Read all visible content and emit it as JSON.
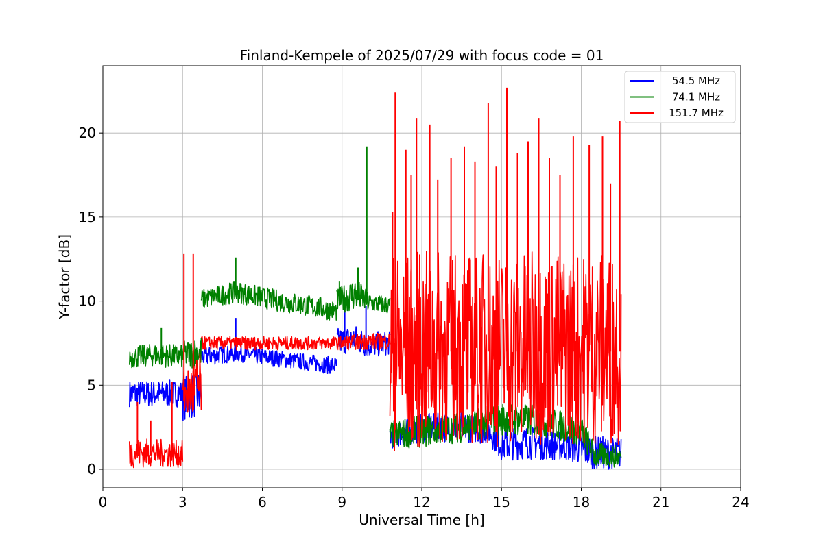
{
  "chart_data": {
    "type": "line",
    "title": "Finland-Kempele of 2025/07/29 with focus code = 01",
    "xlabel": "Universal Time [h]",
    "ylabel": "Y-factor [dB]",
    "xlim": [
      0,
      24
    ],
    "ylim": [
      -1.1,
      24.0
    ],
    "xticks": [
      0,
      3,
      6,
      9,
      12,
      15,
      18,
      21,
      24
    ],
    "yticks": [
      0,
      5,
      10,
      15,
      20
    ],
    "grid": true,
    "legend_position": "top-right",
    "series": [
      {
        "name": "54.5 MHz",
        "color": "#0000ff",
        "segments": [
          {
            "x": [
              1.0,
              3.0
            ],
            "mean": [
              4.5,
              4.5
            ],
            "low": [
              3.7,
              3.7
            ],
            "high": [
              5.3,
              5.3
            ]
          },
          {
            "x": [
              3.0,
              3.7
            ],
            "mean": [
              4.5,
              4.5
            ],
            "low": [
              2.9,
              3.1
            ],
            "high": [
              5.5,
              6.0
            ]
          },
          {
            "x": [
              3.7,
              5.0,
              6.5,
              8.0,
              8.8
            ],
            "mean": [
              6.7,
              6.9,
              6.7,
              6.3,
              6.1
            ],
            "low": [
              6.1,
              6.4,
              6.1,
              5.8,
              5.6
            ],
            "high": [
              7.3,
              7.4,
              7.1,
              6.8,
              6.7
            ]
          },
          {
            "x": [
              8.8,
              9.5,
              10.0,
              10.8
            ],
            "mean": [
              7.5,
              7.6,
              7.3,
              7.3
            ],
            "low": [
              6.8,
              6.9,
              6.6,
              6.8
            ],
            "high": [
              8.4,
              8.6,
              8.2,
              8.2
            ]
          },
          {
            "x": [
              10.8,
              12.0,
              13.5,
              14.5,
              15.0,
              16.0,
              17.5,
              18.5,
              19.5
            ],
            "mean": [
              2.0,
              2.5,
              2.5,
              2.3,
              1.4,
              1.5,
              1.2,
              1.0,
              1.0
            ],
            "low": [
              1.2,
              1.6,
              1.6,
              1.5,
              0.5,
              0.6,
              0.5,
              0.0,
              0.0
            ],
            "high": [
              2.8,
              3.3,
              3.4,
              3.2,
              2.4,
              2.6,
              2.2,
              2.0,
              1.9
            ]
          }
        ],
        "spikes": [
          {
            "x": 5.0,
            "y": 9.0
          },
          {
            "x": 9.1,
            "y": 9.8
          },
          {
            "x": 9.9,
            "y": 9.7
          }
        ]
      },
      {
        "name": "74.1 MHz",
        "color": "#008000",
        "segments": [
          {
            "x": [
              1.0,
              2.0,
              3.0
            ],
            "mean": [
              6.6,
              6.7,
              6.6
            ],
            "low": [
              6.0,
              6.1,
              6.0
            ],
            "high": [
              7.3,
              7.5,
              7.4
            ]
          },
          {
            "x": [
              3.0,
              3.7
            ],
            "mean": [
              6.8,
              6.8
            ],
            "low": [
              6.0,
              6.0
            ],
            "high": [
              7.6,
              8.0
            ]
          },
          {
            "x": [
              3.7,
              5.0,
              6.5,
              8.0,
              8.8
            ],
            "mean": [
              10.1,
              10.6,
              10.1,
              9.6,
              9.4
            ],
            "low": [
              9.5,
              9.9,
              9.4,
              9.0,
              8.8
            ],
            "high": [
              10.7,
              11.2,
              10.7,
              10.3,
              10.0
            ]
          },
          {
            "x": [
              8.8,
              9.5,
              10.0,
              10.8
            ],
            "mean": [
              10.0,
              10.1,
              9.9,
              9.8
            ],
            "low": [
              9.3,
              9.4,
              9.3,
              9.2
            ],
            "high": [
              10.7,
              11.5,
              10.5,
              10.3
            ]
          },
          {
            "x": [
              10.8,
              12.0,
              13.5,
              15.0,
              16.5,
              18.0,
              18.5,
              19.5
            ],
            "mean": [
              2.0,
              2.2,
              2.5,
              3.0,
              2.8,
              2.3,
              0.8,
              0.6
            ],
            "low": [
              1.2,
              1.3,
              1.6,
              2.0,
              1.9,
              1.4,
              0.1,
              0.1
            ],
            "high": [
              2.9,
              3.2,
              3.4,
              4.0,
              3.8,
              3.2,
              1.6,
              1.4
            ]
          }
        ],
        "spikes": [
          {
            "x": 2.2,
            "y": 8.4
          },
          {
            "x": 5.0,
            "y": 12.6
          },
          {
            "x": 8.9,
            "y": 11.2
          },
          {
            "x": 9.6,
            "y": 12.0
          },
          {
            "x": 9.93,
            "y": 19.2
          }
        ]
      },
      {
        "name": "151.7 MHz",
        "color": "#ff0000",
        "segments": [
          {
            "x": [
              1.0,
              2.0,
              3.0
            ],
            "mean": [
              0.9,
              0.8,
              0.7
            ],
            "low": [
              0.1,
              0.1,
              0.1
            ],
            "high": [
              1.9,
              1.8,
              1.7
            ]
          },
          {
            "x": [
              3.0,
              3.7
            ],
            "mean": [
              4.0,
              4.5
            ],
            "low": [
              2.8,
              2.8
            ],
            "high": [
              6.0,
              7.0
            ]
          },
          {
            "x": [
              3.7,
              6.0,
              8.8,
              10.0,
              10.8
            ],
            "mean": [
              7.5,
              7.5,
              7.5,
              7.6,
              7.6
            ],
            "low": [
              7.1,
              7.1,
              7.1,
              7.1,
              7.1
            ],
            "high": [
              7.9,
              7.9,
              7.9,
              8.1,
              8.1
            ]
          },
          {
            "x": [
              10.8,
              12.0,
              13.5,
              15.0,
              16.5,
              18.0,
              19.5
            ],
            "mean": [
              7.0,
              7.0,
              7.0,
              7.0,
              7.0,
              7.0,
              7.0
            ],
            "low": [
              1.0,
              1.2,
              1.5,
              1.3,
              1.5,
              1.4,
              1.5
            ],
            "high": [
              13.0,
              13.0,
              13.0,
              13.0,
              13.0,
              13.0,
              13.0
            ]
          }
        ],
        "spikes": [
          {
            "x": 1.3,
            "y": 4.0
          },
          {
            "x": 1.8,
            "y": 2.9
          },
          {
            "x": 2.6,
            "y": 5.2
          },
          {
            "x": 3.05,
            "y": 12.8
          },
          {
            "x": 3.4,
            "y": 12.8
          },
          {
            "x": 10.9,
            "y": 15.3
          },
          {
            "x": 11.0,
            "y": 22.4
          },
          {
            "x": 11.4,
            "y": 19.0
          },
          {
            "x": 11.6,
            "y": 17.5
          },
          {
            "x": 11.8,
            "y": 20.9
          },
          {
            "x": 12.3,
            "y": 20.5
          },
          {
            "x": 12.6,
            "y": 17.2
          },
          {
            "x": 13.1,
            "y": 18.5
          },
          {
            "x": 13.6,
            "y": 19.2
          },
          {
            "x": 14.0,
            "y": 18.3
          },
          {
            "x": 14.5,
            "y": 21.8
          },
          {
            "x": 14.8,
            "y": 18.0
          },
          {
            "x": 15.2,
            "y": 22.7
          },
          {
            "x": 15.6,
            "y": 18.8
          },
          {
            "x": 16.0,
            "y": 19.5
          },
          {
            "x": 16.4,
            "y": 20.9
          },
          {
            "x": 16.8,
            "y": 18.5
          },
          {
            "x": 17.2,
            "y": 17.5
          },
          {
            "x": 17.7,
            "y": 19.8
          },
          {
            "x": 18.3,
            "y": 19.3
          },
          {
            "x": 18.8,
            "y": 19.8
          },
          {
            "x": 19.1,
            "y": 17.0
          },
          {
            "x": 19.45,
            "y": 20.7
          }
        ]
      }
    ]
  }
}
